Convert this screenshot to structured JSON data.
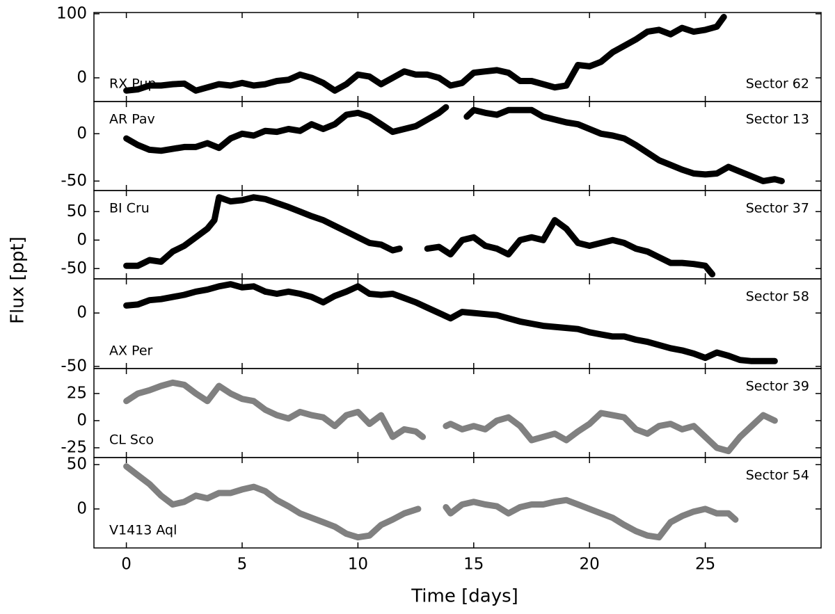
{
  "chart_data": {
    "type": "line",
    "xlabel": "Time [days]",
    "ylabel": "Flux [ppt]",
    "xlim": [
      -1.4,
      30
    ],
    "xticks": [
      0,
      5,
      10,
      15,
      20,
      25
    ],
    "panels": [
      {
        "name": "RX Pup",
        "annotation": "Sector 62",
        "color": "#000000",
        "ylim": [
          -37,
          102
        ],
        "yticks": [
          0,
          100
        ],
        "x": [
          0,
          0.5,
          1,
          1.5,
          2,
          2.5,
          3,
          3.5,
          4,
          4.5,
          5,
          5.5,
          6,
          6.5,
          7,
          7.5,
          8,
          8.5,
          9,
          9.5,
          10,
          10.5,
          11,
          11.5,
          12,
          12.5,
          13,
          13.5,
          14,
          14.5,
          15,
          15.5,
          16,
          16.5,
          17,
          17.5,
          18,
          18.5,
          19,
          19.5,
          20,
          20.5,
          21,
          21.5,
          22,
          22.5,
          23,
          23.5,
          24,
          24.5,
          25,
          25.5,
          25.8
        ],
        "values": [
          -20,
          -18,
          -12,
          -12,
          -10,
          -9,
          -20,
          -15,
          -10,
          -12,
          -8,
          -12,
          -10,
          -5,
          -3,
          5,
          0,
          -8,
          -20,
          -10,
          5,
          2,
          -10,
          0,
          10,
          5,
          5,
          0,
          -12,
          -8,
          8,
          10,
          12,
          8,
          -5,
          -5,
          -10,
          -15,
          -12,
          20,
          18,
          25,
          40,
          50,
          60,
          72,
          75,
          68,
          78,
          72,
          75,
          80,
          95
        ]
      },
      {
        "name": "AR Pav",
        "annotation": "Sector 13",
        "color": "#000000",
        "ylim": [
          -60,
          34
        ],
        "yticks": [
          -50,
          0
        ],
        "x": [
          0,
          0.5,
          1,
          1.5,
          2,
          2.5,
          3,
          3.5,
          4,
          4.5,
          5,
          5.5,
          6,
          6.5,
          7,
          7.5,
          8,
          8.5,
          9,
          9.5,
          10,
          10.5,
          11,
          11.5,
          12,
          12.5,
          13,
          13.5,
          13.8,
          14.2,
          14.7,
          15,
          15.5,
          16,
          16.5,
          17,
          17.5,
          18,
          18.5,
          19,
          19.5,
          20,
          20.5,
          21,
          21.5,
          22,
          22.5,
          23,
          23.5,
          24,
          24.5,
          25,
          25.5,
          26,
          26.5,
          27,
          27.5,
          28,
          28.3
        ],
        "values": [
          -5,
          -12,
          -17,
          -18,
          -16,
          -14,
          -14,
          -10,
          -15,
          -5,
          0,
          -2,
          3,
          2,
          5,
          3,
          10,
          5,
          10,
          20,
          22,
          18,
          10,
          2,
          5,
          8,
          15,
          22,
          28,
          null,
          18,
          25,
          22,
          20,
          25,
          25,
          25,
          18,
          15,
          12,
          10,
          5,
          0,
          -2,
          -5,
          -12,
          -20,
          -28,
          -33,
          -38,
          -42,
          -43,
          -42,
          -35,
          -40,
          -45,
          -50,
          -48,
          -50
        ]
      },
      {
        "name": "BI Cru",
        "annotation": "Sector 37",
        "color": "#000000",
        "ylim": [
          -68,
          87
        ],
        "yticks": [
          -50,
          0,
          50
        ],
        "x": [
          0,
          0.5,
          1,
          1.5,
          2,
          2.5,
          3,
          3.5,
          3.8,
          4,
          4.5,
          5,
          5.5,
          6,
          6.5,
          7,
          7.5,
          8,
          8.5,
          9,
          9.5,
          10,
          10.5,
          11,
          11.5,
          11.8,
          12.4,
          13,
          13.5,
          14,
          14.5,
          15,
          15.5,
          16,
          16.5,
          17,
          17.5,
          18,
          18.5,
          19,
          19.5,
          20,
          20.5,
          21,
          21.5,
          22,
          22.5,
          23,
          23.5,
          24,
          24.5,
          25,
          25.3
        ],
        "values": [
          -45,
          -45,
          -35,
          -38,
          -20,
          -10,
          5,
          20,
          35,
          75,
          68,
          70,
          75,
          72,
          65,
          58,
          50,
          42,
          35,
          25,
          15,
          5,
          -5,
          -8,
          -18,
          -15,
          null,
          -15,
          -12,
          -25,
          0,
          5,
          -10,
          -15,
          -25,
          0,
          5,
          0,
          35,
          20,
          -5,
          -10,
          -5,
          0,
          -5,
          -15,
          -20,
          -30,
          -40,
          -40,
          -42,
          -45,
          -60
        ]
      },
      {
        "name": "AX Per",
        "annotation": "Sector 58",
        "color": "#000000",
        "ylim": [
          -52,
          32
        ],
        "yticks": [
          -50,
          0
        ],
        "x": [
          0,
          0.5,
          1,
          1.5,
          2,
          2.5,
          3,
          3.5,
          4,
          4.5,
          5,
          5.5,
          6,
          6.5,
          7,
          7.5,
          8,
          8.5,
          9,
          9.5,
          10,
          10.5,
          11,
          11.5,
          12,
          12.5,
          13,
          13.5,
          14,
          14.5,
          15,
          15.5,
          16,
          16.5,
          17,
          17.5,
          18,
          18.5,
          19,
          19.5,
          20,
          20.5,
          21,
          21.5,
          22,
          22.5,
          23,
          23.5,
          24,
          24.5,
          25,
          25.5,
          26,
          26.5,
          27,
          27.5,
          28
        ],
        "values": [
          7,
          8,
          12,
          13,
          15,
          17,
          20,
          22,
          25,
          27,
          24,
          25,
          20,
          18,
          20,
          18,
          15,
          10,
          16,
          20,
          25,
          18,
          17,
          18,
          14,
          10,
          5,
          0,
          -5,
          1,
          0,
          -1,
          -2,
          -5,
          -8,
          -10,
          -12,
          -13,
          -14,
          -15,
          -18,
          -20,
          -22,
          -22,
          -25,
          -27,
          -30,
          -33,
          -35,
          -38,
          -42,
          -37,
          -40,
          -44,
          -45,
          -45,
          -45
        ]
      },
      {
        "name": "CL Sco",
        "annotation": "Sector 39",
        "color": "#808080",
        "ylim": [
          -34,
          48
        ],
        "yticks": [
          -25,
          0,
          25
        ],
        "x": [
          0,
          0.5,
          1,
          1.5,
          2,
          2.5,
          3,
          3.5,
          4,
          4.5,
          5,
          5.5,
          6,
          6.5,
          7,
          7.5,
          8,
          8.5,
          9,
          9.5,
          10,
          10.5,
          11,
          11.5,
          12,
          12.5,
          12.8,
          13.2,
          13.8,
          14,
          14.5,
          15,
          15.5,
          16,
          16.5,
          17,
          17.5,
          18,
          18.5,
          19,
          19.5,
          20,
          20.5,
          21,
          21.5,
          22,
          22.5,
          23,
          23.5,
          24,
          24.5,
          25,
          25.5,
          26,
          26.5,
          27,
          27.5,
          28
        ],
        "values": [
          18,
          25,
          28,
          32,
          35,
          33,
          25,
          18,
          32,
          25,
          20,
          18,
          10,
          5,
          2,
          8,
          5,
          3,
          -5,
          5,
          8,
          -3,
          5,
          -15,
          -8,
          -10,
          -15,
          null,
          -5,
          -3,
          -8,
          -5,
          -8,
          0,
          3,
          -5,
          -18,
          -15,
          -12,
          -18,
          -10,
          -3,
          7,
          5,
          3,
          -8,
          -12,
          -5,
          -3,
          -8,
          -5,
          -15,
          -25,
          -28,
          -15,
          -5,
          5,
          0
        ]
      },
      {
        "name": "V1413 Aql",
        "annotation": "Sector 54",
        "color": "#808080",
        "ylim": [
          -44,
          58
        ],
        "yticks": [
          0,
          50
        ],
        "x": [
          0,
          0.5,
          1,
          1.5,
          2,
          2.5,
          3,
          3.5,
          4,
          4.5,
          5,
          5.5,
          6,
          6.5,
          7,
          7.5,
          8,
          8.5,
          9,
          9.5,
          10,
          10.5,
          11,
          11.5,
          12,
          12.6,
          13.2,
          13.8,
          14,
          14.5,
          15,
          15.5,
          16,
          16.5,
          17,
          17.5,
          18,
          18.5,
          19,
          19.5,
          20,
          20.5,
          21,
          21.5,
          22,
          22.5,
          23,
          23.5,
          24,
          24.5,
          25,
          25.5,
          26,
          26.3
        ],
        "values": [
          48,
          38,
          28,
          15,
          5,
          8,
          15,
          12,
          18,
          18,
          22,
          25,
          20,
          10,
          3,
          -5,
          -10,
          -15,
          -20,
          -28,
          -32,
          -30,
          -18,
          -12,
          -5,
          0,
          null,
          2,
          -5,
          5,
          8,
          5,
          3,
          -5,
          2,
          5,
          5,
          8,
          10,
          5,
          0,
          -5,
          -10,
          -18,
          -25,
          -30,
          -32,
          -15,
          -8,
          -3,
          0,
          -5,
          -5,
          -12
        ]
      }
    ]
  }
}
